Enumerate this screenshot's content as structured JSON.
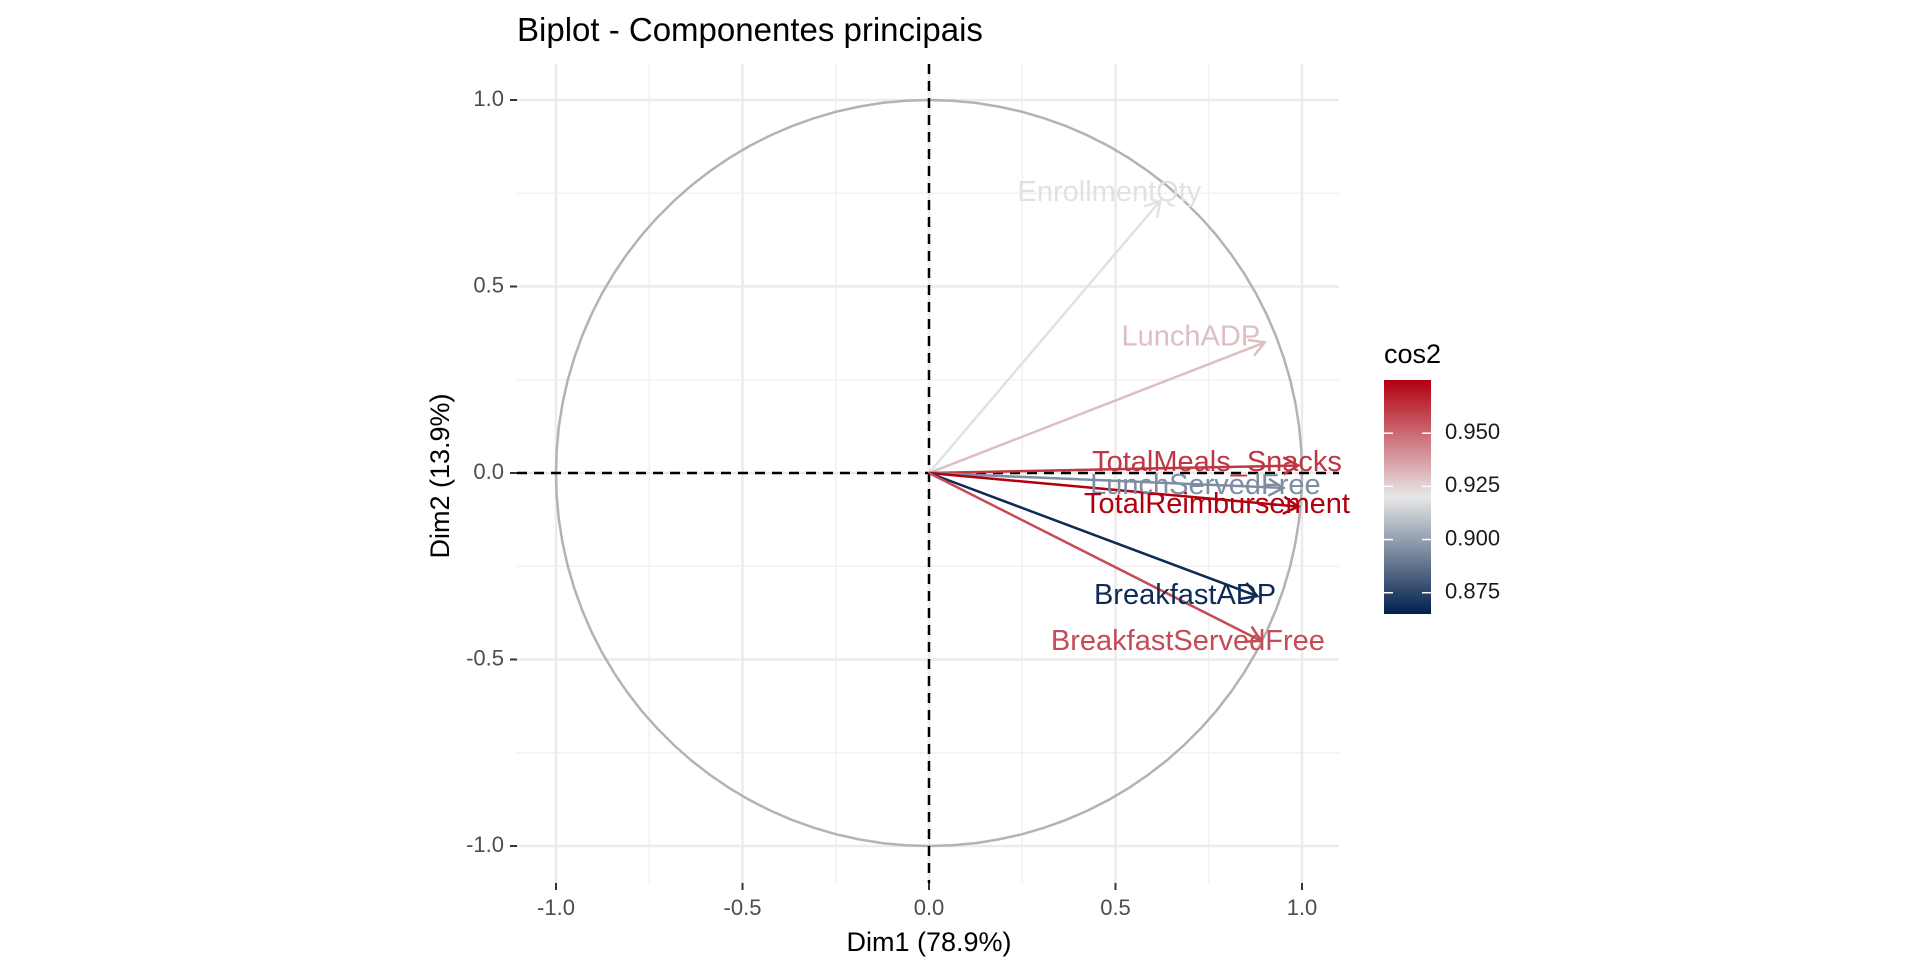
{
  "chart_data": {
    "type": "scatter",
    "subtype": "pca-variable-correlation-circle",
    "title": "Biplot - Componentes principais",
    "xlabel": "Dim1 (78.9%)",
    "ylabel": "Dim2 (13.9%)",
    "xlim": [
      -1.1,
      1.1
    ],
    "ylim": [
      -1.1,
      1.1
    ],
    "x_ticks": [
      -1.0,
      -0.5,
      0.0,
      0.5,
      1.0
    ],
    "y_ticks": [
      -1.0,
      -0.5,
      0.0,
      0.5,
      1.0
    ],
    "x_tick_labels": [
      "-1.0",
      "-0.5",
      "0.0",
      "0.5",
      "1.0"
    ],
    "y_tick_labels": [
      "-1.0",
      "-0.5",
      "0.0",
      "0.5",
      "1.0"
    ],
    "grid": true,
    "unit_circle": true,
    "legend": {
      "title": "cos2",
      "position": "right",
      "type": "gradient",
      "range": [
        0.865,
        0.975
      ],
      "ticks": [
        0.875,
        0.9,
        0.925,
        0.95
      ],
      "tick_labels": [
        "0.875",
        "0.900",
        "0.925",
        "0.950"
      ],
      "colors": {
        "low": "#00204d",
        "mid": "#e8e8e8",
        "high": "#b2000f"
      },
      "midpoint": 0.92
    },
    "variables": [
      {
        "label": "EnrollmentQty",
        "x": 0.62,
        "y": 0.73,
        "cos2": 0.918
      },
      {
        "label": "LunchADP",
        "x": 0.9,
        "y": 0.35,
        "cos2": 0.93
      },
      {
        "label": "TotalMeals_Snacks",
        "x": 0.99,
        "y": 0.02,
        "cos2": 0.962
      },
      {
        "label": "LunchServedFree",
        "x": 0.95,
        "y": -0.04,
        "cos2": 0.895
      },
      {
        "label": "TotalReimbursement",
        "x": 0.99,
        "y": -0.09,
        "cos2": 0.975
      },
      {
        "label": "BreakfastADP",
        "x": 0.88,
        "y": -0.33,
        "cos2": 0.868
      },
      {
        "label": "BreakfastServedFree",
        "x": 0.89,
        "y": -0.45,
        "cos2": 0.957
      }
    ]
  }
}
